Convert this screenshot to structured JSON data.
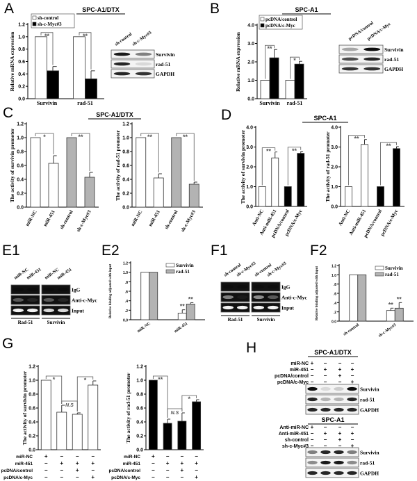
{
  "panels": {
    "A": {
      "label": "A"
    },
    "B": {
      "label": "B"
    },
    "C": {
      "label": "C",
      "title": "SPC-A1/DTX"
    },
    "D": {
      "label": "D",
      "title": "SPC-A1"
    },
    "E1": {
      "label": "E1",
      "lanes": [
        "miR-NC",
        "miR-451",
        "miR-NC",
        "miR-451"
      ],
      "rows": [
        {
          "label": "IgG",
          "intensities": [
            0.05,
            0.05,
            0.05,
            0.05
          ]
        },
        {
          "label": "Anti-c-Myc",
          "intensities": [
            0.35,
            0.15,
            0.35,
            0.15
          ]
        },
        {
          "label": "Input",
          "intensities": [
            0.95,
            0.95,
            0.85,
            0.85
          ]
        }
      ],
      "groups": [
        "Rad-51",
        "Survivin"
      ]
    },
    "E2": {
      "label": "E2"
    },
    "F1": {
      "label": "F1",
      "lanes": [
        "sh-control",
        "sh-c-Myc#3",
        "sh-control",
        "sh-c-Myc#3"
      ],
      "rows": [
        {
          "label": "IgG",
          "intensities": [
            0.05,
            0.05,
            0.05,
            0.05
          ]
        },
        {
          "label": "Anti-c-Myc",
          "intensities": [
            0.5,
            0.1,
            0.55,
            0.35
          ]
        },
        {
          "label": "Input",
          "intensities": [
            0.95,
            0.95,
            0.95,
            0.95
          ]
        }
      ],
      "groups": [
        "Rad-51",
        "Survivin"
      ]
    },
    "F2": {
      "label": "F2"
    },
    "G": {
      "label": "G",
      "conditions": [
        {
          "label": "miR-NC",
          "signs": [
            "+",
            "−",
            "−",
            "−"
          ]
        },
        {
          "label": "miR-451",
          "signs": [
            "−",
            "+",
            "+",
            "+"
          ]
        },
        {
          "label": "pcDNA/control",
          "signs": [
            "−",
            "−",
            "+",
            "−"
          ]
        },
        {
          "label": "pcDNA/c-Myc",
          "signs": [
            "−",
            "−",
            "−",
            "+"
          ]
        }
      ]
    },
    "H": {
      "label": "H",
      "sections": [
        {
          "title": "SPC-A1/DTX",
          "conditions": [
            {
              "label": "miR-NC",
              "signs": [
                "+",
                "−",
                "−",
                "−"
              ]
            },
            {
              "label": "miR-451",
              "signs": [
                "−",
                "+",
                "+",
                "+"
              ]
            },
            {
              "label": "pcDNA/control",
              "signs": [
                "−",
                "−",
                "+",
                "−"
              ]
            },
            {
              "label": "pcDNA/c-Myc",
              "signs": [
                "−",
                "−",
                "−",
                "+"
              ]
            }
          ],
          "blots": [
            {
              "label": "Survivin",
              "intensities": [
                0.95,
                0.15,
                0.2,
                0.95
              ]
            },
            {
              "label": "rad-51",
              "intensities": [
                0.85,
                0.3,
                0.3,
                0.85
              ]
            },
            {
              "label": "GAPDH",
              "intensities": [
                0.85,
                0.85,
                0.85,
                0.85
              ]
            }
          ]
        },
        {
          "title": "SPC-A1",
          "conditions": [
            {
              "label": "Anti-miR-NC",
              "signs": [
                "+",
                "−",
                "−",
                "−"
              ]
            },
            {
              "label": "Anti-miR-451",
              "signs": [
                "−",
                "+",
                "+",
                "+"
              ]
            },
            {
              "label": "sh-control",
              "signs": [
                "−",
                "−",
                "+",
                "−"
              ]
            },
            {
              "label": "sh-c-Myc#3",
              "signs": [
                "−",
                "−",
                "−",
                "+"
              ]
            }
          ],
          "blots": [
            {
              "label": "Survivin",
              "intensities": [
                0.5,
                0.85,
                0.85,
                0.5
              ]
            },
            {
              "label": "rad-51",
              "intensities": [
                0.45,
                0.9,
                0.9,
                0.45
              ]
            },
            {
              "label": "GAPDH",
              "intensities": [
                0.85,
                0.85,
                0.85,
                0.85
              ]
            }
          ]
        }
      ]
    }
  },
  "blots": {
    "A": {
      "lanes": [
        "sh-control",
        "sh-c-Myc#3"
      ],
      "rows": [
        {
          "label": "Survivin",
          "intensities": [
            0.9,
            0.5
          ]
        },
        {
          "label": "rad-51",
          "intensities": [
            0.85,
            0.15
          ]
        },
        {
          "label": "GAPDH",
          "intensities": [
            0.85,
            0.8
          ]
        }
      ]
    },
    "B": {
      "lanes": [
        "pcDNA/control",
        "pcDNA/c-Myc"
      ],
      "rows": [
        {
          "label": "Survivin",
          "intensities": [
            0.35,
            0.95
          ]
        },
        {
          "label": "rad-51",
          "intensities": [
            0.7,
            0.85
          ]
        },
        {
          "label": "GAPDH",
          "intensities": [
            0.8,
            0.8
          ]
        }
      ]
    }
  },
  "colors": {
    "white": "#ffffff",
    "black": "#000000",
    "gray": "#b3b3b3"
  },
  "chart_data": [
    {
      "id": "A",
      "type": "bar",
      "title": "SPC-A1/DTX",
      "ylabel": "Relative mRNA expression",
      "categories": [
        "Survivin",
        "rad-51"
      ],
      "ylim": [
        0,
        1.2
      ],
      "yticks": [
        0,
        0.2,
        0.4,
        0.6,
        0.8,
        1.0,
        1.2
      ],
      "ytick_labels": [
        "0.0",
        "0.2",
        "0.4",
        "0.6",
        "0.8",
        "1.0",
        "1.2"
      ],
      "series": [
        {
          "name": "sh-control",
          "values": [
            1.0,
            1.0
          ],
          "errors": [
            0,
            0
          ],
          "color": "#ffffff"
        },
        {
          "name": "sh-c-Myc#3",
          "values": [
            0.45,
            0.32
          ],
          "errors": [
            0.07,
            0.13
          ],
          "color": "#000000"
        }
      ],
      "legend": "top-left",
      "significance": [
        {
          "from": 0,
          "to": 1,
          "label": "**"
        },
        {
          "from": 2,
          "to": 3,
          "label": "**"
        }
      ]
    },
    {
      "id": "B",
      "type": "bar",
      "title": "SPC-A1",
      "ylabel": "Relative mRNA expression",
      "categories": [
        "Survivin",
        "rad-51"
      ],
      "ylim": [
        0,
        4
      ],
      "yticks": [
        0,
        1,
        2,
        3,
        4
      ],
      "ytick_labels": [
        "0.0",
        "1.0",
        "2.0",
        "3.0",
        "4.0"
      ],
      "series": [
        {
          "name": "pcDNA/control",
          "values": [
            1.0,
            1.0
          ],
          "errors": [
            0,
            0
          ],
          "color": "#ffffff"
        },
        {
          "name": "pcDNA/c-Myc",
          "values": [
            2.22,
            1.88
          ],
          "errors": [
            0.45,
            0.15
          ],
          "color": "#000000"
        }
      ],
      "legend": "top-left",
      "significance": [
        {
          "from": 0,
          "to": 1,
          "label": "**"
        },
        {
          "from": 2,
          "to": 3,
          "label": "*"
        }
      ]
    },
    {
      "id": "C1",
      "type": "bar",
      "ylabel": "The activity of survivin promoter",
      "categories": [
        "miR-NC",
        "miR-451",
        "sh-control",
        "sh-c-Myc#3"
      ],
      "ylim": [
        0,
        1.2
      ],
      "yticks": [
        0,
        0.2,
        0.4,
        0.6,
        0.8,
        1.0,
        1.2
      ],
      "ytick_labels": [
        "0.0",
        "0.2",
        "0.4",
        "0.6",
        "0.8",
        "1.0",
        "1.2"
      ],
      "values": [
        1.0,
        0.63,
        1.0,
        0.43
      ],
      "errors": [
        0,
        0.11,
        0,
        0.07
      ],
      "colors": [
        "#ffffff",
        "#ffffff",
        "#b3b3b3",
        "#b3b3b3"
      ],
      "significance": [
        {
          "from": 0,
          "to": 1,
          "label": "*"
        },
        {
          "from": 2,
          "to": 3,
          "label": "**"
        }
      ]
    },
    {
      "id": "C2",
      "type": "bar",
      "ylabel": "The activity of rad-51 promoter",
      "categories": [
        "miR-NC",
        "miR-451",
        "sh-control",
        "sh-c-Myc#3"
      ],
      "ylim": [
        0,
        1.2
      ],
      "yticks": [
        0,
        0.2,
        0.4,
        0.6,
        0.8,
        1.0,
        1.2
      ],
      "ytick_labels": [
        "0.0",
        "0.2",
        "0.4",
        "0.6",
        "0.8",
        "1.0",
        "1.2"
      ],
      "values": [
        1.0,
        0.42,
        1.0,
        0.33
      ],
      "errors": [
        0,
        0.06,
        0,
        0.03
      ],
      "colors": [
        "#ffffff",
        "#ffffff",
        "#b3b3b3",
        "#b3b3b3"
      ],
      "significance": [
        {
          "from": 0,
          "to": 1,
          "label": "**"
        },
        {
          "from": 2,
          "to": 3,
          "label": "**"
        }
      ]
    },
    {
      "id": "D1",
      "type": "bar",
      "ylabel": "The activity of survivin promoter",
      "categories": [
        "Anti-NC",
        "Anti-miR-451",
        "pcDNA/control",
        "pcDNA/c-Myc"
      ],
      "ylim": [
        0,
        4
      ],
      "yticks": [
        0,
        1,
        2,
        3,
        4
      ],
      "ytick_labels": [
        "0.0",
        "1.0",
        "2.0",
        "3.0",
        "4.0"
      ],
      "values": [
        1.0,
        2.45,
        1.0,
        2.68
      ],
      "errors": [
        0,
        0.3,
        0,
        0.1
      ],
      "colors": [
        "#ffffff",
        "#ffffff",
        "#000000",
        "#000000"
      ],
      "significance": [
        {
          "from": 0,
          "to": 1,
          "label": "**"
        },
        {
          "from": 2,
          "to": 3,
          "label": "**"
        }
      ]
    },
    {
      "id": "D2",
      "type": "bar",
      "ylabel": "The activity of rad-51 promoter",
      "categories": [
        "Anti-NC",
        "Anti-miR-451",
        "pcDNA/control",
        "pcDNA/c-Myc"
      ],
      "ylim": [
        0,
        4
      ],
      "yticks": [
        0,
        1,
        2,
        3,
        4
      ],
      "ytick_labels": [
        "0.0",
        "1.0",
        "2.0",
        "3.0",
        "4.0"
      ],
      "values": [
        1.0,
        3.13,
        1.0,
        2.92
      ],
      "errors": [
        0,
        0.25,
        0,
        0.1
      ],
      "colors": [
        "#ffffff",
        "#ffffff",
        "#000000",
        "#000000"
      ],
      "significance": [
        {
          "from": 0,
          "to": 1,
          "label": "**"
        },
        {
          "from": 2,
          "to": 3,
          "label": "**"
        }
      ]
    },
    {
      "id": "E2",
      "type": "bar",
      "ylabel": "Relative binding adjusted with input",
      "categories": [
        "miR-NC",
        "miR-451"
      ],
      "ylim": [
        0,
        1.2
      ],
      "yticks": [
        0,
        0.2,
        0.4,
        0.6,
        0.8,
        1.0,
        1.2
      ],
      "ytick_labels": [
        "0.0",
        ".2",
        ".4",
        ".6",
        ".8",
        "1.0",
        "1.2"
      ],
      "series": [
        {
          "name": "Survivin",
          "values": [
            1.0,
            0.14
          ],
          "errors": [
            0,
            0.07
          ],
          "color": "#ffffff"
        },
        {
          "name": "rad-51",
          "values": [
            1.0,
            0.33
          ],
          "errors": [
            0,
            0.03
          ],
          "color": "#b3b3b3"
        }
      ],
      "legend": "top-right",
      "significance": [
        {
          "bar": 2,
          "label": "**"
        },
        {
          "bar": 3,
          "label": "**"
        }
      ]
    },
    {
      "id": "F2",
      "type": "bar",
      "ylabel": "Relative binding adjusted with input",
      "categories": [
        "sh-control",
        "sh-c-Myc#3"
      ],
      "ylim": [
        0,
        1.2
      ],
      "yticks": [
        0,
        0.2,
        0.4,
        0.6,
        0.8,
        1.0,
        1.2
      ],
      "ytick_labels": [
        "0.0",
        ".2",
        ".4",
        ".6",
        ".8",
        "1.0",
        "1.2"
      ],
      "series": [
        {
          "name": "Survivin",
          "values": [
            1.0,
            0.23
          ],
          "errors": [
            0,
            0.05
          ],
          "color": "#ffffff"
        },
        {
          "name": "rad-51",
          "values": [
            1.0,
            0.28
          ],
          "errors": [
            0,
            0.12
          ],
          "color": "#b3b3b3"
        }
      ],
      "legend": "top-right",
      "significance": [
        {
          "bar": 2,
          "label": "**"
        },
        {
          "bar": 3,
          "label": "**"
        }
      ]
    },
    {
      "id": "G1",
      "type": "bar",
      "ylabel": "The activity of survivin promoter",
      "ylim": [
        0,
        1.2
      ],
      "yticks": [
        0,
        0.2,
        0.4,
        0.6,
        0.8,
        1.0,
        1.2
      ],
      "ytick_labels": [
        "0.0",
        "0.2",
        "0.4",
        "0.6",
        "0.8",
        "1.0",
        "1.2"
      ],
      "values": [
        1.0,
        0.54,
        0.51,
        0.93
      ],
      "errors": [
        0,
        0.1,
        0.02,
        0.06
      ],
      "colors": [
        "#ffffff",
        "#ffffff",
        "#ffffff",
        "#ffffff"
      ],
      "significance": [
        {
          "from": 0,
          "to": 1,
          "label": "*"
        },
        {
          "from": 1,
          "to": 2,
          "label": "N.S"
        },
        {
          "from": 2,
          "to": 3,
          "label": "*"
        }
      ]
    },
    {
      "id": "G2",
      "type": "bar",
      "ylabel": "The activity of rad-51 promoter",
      "ylim": [
        0,
        1.2
      ],
      "yticks": [
        0,
        0.2,
        0.4,
        0.6,
        0.8,
        1.0,
        1.2
      ],
      "ytick_labels": [
        "0.0",
        "0.2",
        "0.4",
        "0.6",
        "0.8",
        "1.0",
        "1.2"
      ],
      "values": [
        1.0,
        0.38,
        0.41,
        0.69
      ],
      "errors": [
        0,
        0.06,
        0.12,
        0.03
      ],
      "colors": [
        "#000000",
        "#000000",
        "#000000",
        "#000000"
      ],
      "significance": [
        {
          "from": 0,
          "to": 1,
          "label": "**"
        },
        {
          "from": 1,
          "to": 2,
          "label": "N.S"
        },
        {
          "from": 2,
          "to": 3,
          "label": "*"
        }
      ]
    }
  ]
}
